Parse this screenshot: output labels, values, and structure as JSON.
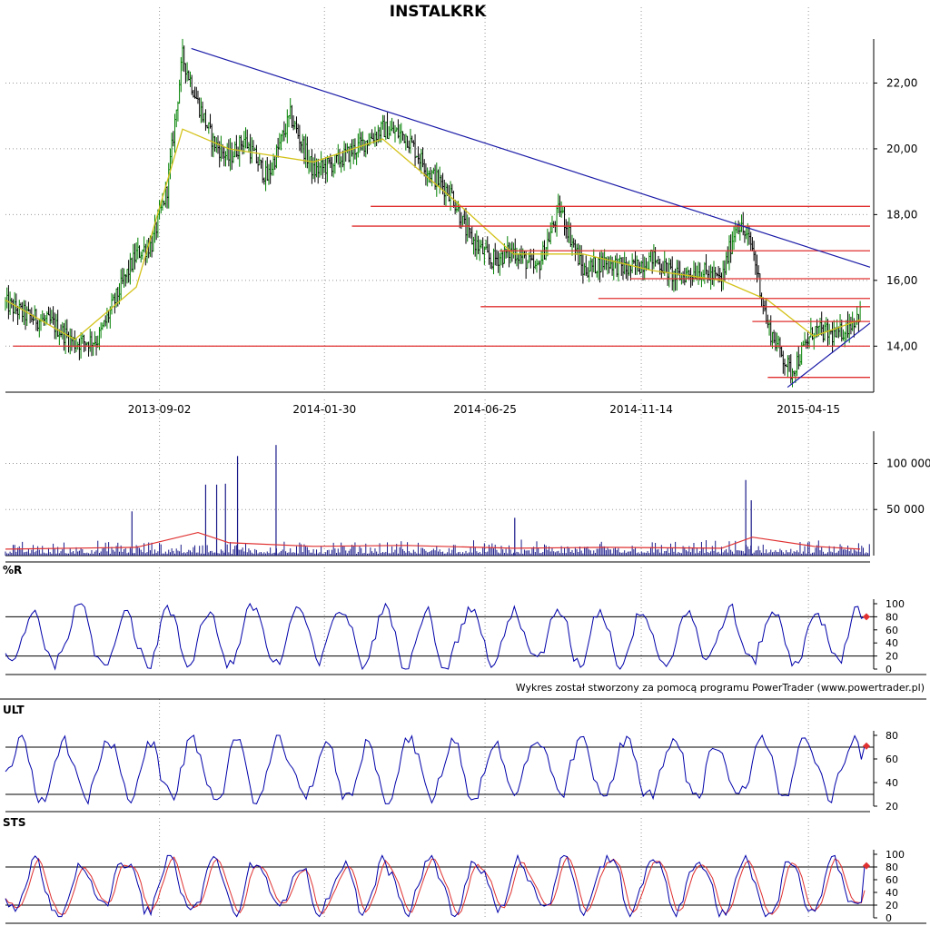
{
  "chart_data": {
    "type": "line",
    "title": "INSTALKRK",
    "credit": "Wykres został stworzony za pomocą programu PowerTrader (www.powertrader.pl)",
    "x_axis": {
      "start": "2013-04-15",
      "end": "2015-06-10",
      "ticks": [
        "2013-09-02",
        "2014-01-30",
        "2014-06-25",
        "2014-11-14",
        "2015-04-15"
      ]
    },
    "grid": true,
    "colors": {
      "price_up": "#008000",
      "price_down": "#000000",
      "moving_average": "#d4c21a",
      "trendline": "#1a1aa8",
      "support_resistance": "#e03030",
      "indicator": "#0000aa",
      "signal": "#e03030",
      "volume_bar": "#1a1a8a",
      "volume_avg": "#e03030"
    },
    "panels": [
      {
        "name": "price",
        "label": "",
        "ylim": [
          12.6,
          23.2
        ],
        "yticks": [
          "14,00",
          "16,00",
          "18,00",
          "20,00",
          "22,00"
        ],
        "series": [
          {
            "kind": "ohlc",
            "x": [
              "2013-04-15",
              "2013-05-06",
              "2013-05-27",
              "2013-06-17",
              "2013-07-08",
              "2013-07-29",
              "2013-08-12",
              "2013-08-26",
              "2013-09-09",
              "2013-09-23",
              "2013-10-07",
              "2013-10-21",
              "2013-11-04",
              "2013-11-18",
              "2013-12-09",
              "2013-12-30",
              "2014-01-20",
              "2014-02-10",
              "2014-03-03",
              "2014-03-24",
              "2014-04-14",
              "2014-05-05",
              "2014-05-26",
              "2014-06-09",
              "2014-06-30",
              "2014-07-21",
              "2014-08-11",
              "2014-09-01",
              "2014-09-22",
              "2014-10-13",
              "2014-11-03",
              "2014-11-24",
              "2014-12-15",
              "2015-01-05",
              "2015-01-26",
              "2015-02-09",
              "2015-02-23",
              "2015-03-09",
              "2015-03-30",
              "2015-04-20",
              "2015-05-11",
              "2015-06-01"
            ],
            "values": [
              15.3,
              14.9,
              14.7,
              14.1,
              14.2,
              15.8,
              16.8,
              17.1,
              18.8,
              22.8,
              21.4,
              20.2,
              19.7,
              20.3,
              19.1,
              21.0,
              19.3,
              19.6,
              20.1,
              20.6,
              20.4,
              19.3,
              18.6,
              17.4,
              16.6,
              16.9,
              16.3,
              18.2,
              16.3,
              16.6,
              16.3,
              16.7,
              16.1,
              16.3,
              16.0,
              17.8,
              17.0,
              14.6,
              13.2,
              14.5,
              14.3,
              15.0
            ]
          },
          {
            "kind": "moving_average",
            "x": [
              "2013-04-15",
              "2013-06-17",
              "2013-08-12",
              "2013-09-23",
              "2013-11-04",
              "2014-01-20",
              "2014-03-24",
              "2014-05-26",
              "2014-07-21",
              "2014-09-22",
              "2014-11-24",
              "2015-01-26",
              "2015-03-09",
              "2015-04-20",
              "2015-06-01"
            ],
            "values": [
              15.4,
              14.2,
              15.8,
              20.6,
              20.0,
              19.6,
              20.3,
              18.5,
              16.8,
              16.8,
              16.3,
              16.0,
              15.4,
              14.3,
              14.8
            ]
          }
        ],
        "trendlines": [
          {
            "from": [
              "2013-10-01",
              23.05
            ],
            "to": [
              "2015-06-10",
              16.4
            ]
          },
          {
            "from": [
              "2015-03-27",
              12.75
            ],
            "to": [
              "2015-06-10",
              14.7
            ]
          }
        ],
        "hlines": [
          {
            "y": 18.25,
            "from": "2014-03-13",
            "to": "2015-06-10"
          },
          {
            "y": 17.65,
            "from": "2014-02-24",
            "to": "2015-06-10"
          },
          {
            "y": 16.9,
            "from": "2014-07-08",
            "to": "2015-06-10"
          },
          {
            "y": 16.05,
            "from": "2014-11-04",
            "to": "2015-06-10"
          },
          {
            "y": 15.45,
            "from": "2014-10-06",
            "to": "2015-06-10"
          },
          {
            "y": 15.2,
            "from": "2014-06-21",
            "to": "2015-06-10"
          },
          {
            "y": 14.75,
            "from": "2015-02-23",
            "to": "2015-06-10"
          },
          {
            "y": 14.0,
            "from": "2013-04-22",
            "to": "2015-06-10"
          },
          {
            "y": 13.05,
            "from": "2015-03-09",
            "to": "2015-06-10"
          }
        ]
      },
      {
        "name": "volume",
        "label": "",
        "ylim": [
          0,
          130000
        ],
        "yticks": [
          "50 000",
          "100 000"
        ],
        "spikes": [
          {
            "x": "2013-08-08",
            "y": 48000
          },
          {
            "x": "2013-10-14",
            "y": 77000
          },
          {
            "x": "2013-10-24",
            "y": 77000
          },
          {
            "x": "2013-11-01",
            "y": 78000
          },
          {
            "x": "2013-11-12",
            "y": 108000
          },
          {
            "x": "2013-12-17",
            "y": 120000
          },
          {
            "x": "2014-07-22",
            "y": 41000
          },
          {
            "x": "2015-02-17",
            "y": 82000
          },
          {
            "x": "2015-02-22",
            "y": 60000
          }
        ],
        "avg_x": [
          "2013-04-15",
          "2013-08-12",
          "2013-10-07",
          "2013-11-04",
          "2014-01-20",
          "2014-04-14",
          "2014-07-21",
          "2014-10-13",
          "2015-01-26",
          "2015-02-23",
          "2015-04-20",
          "2015-06-01"
        ],
        "avg_values": [
          7000,
          9000,
          25000,
          14000,
          10000,
          11000,
          8000,
          9000,
          8000,
          20000,
          10000,
          7000
        ]
      },
      {
        "name": "williams_r",
        "label": "%R",
        "ylim": [
          0,
          100
        ],
        "yticks": [
          "0",
          "20",
          "40",
          "60",
          "80",
          "100"
        ],
        "levels": [
          20,
          80
        ],
        "last_value": 80
      },
      {
        "name": "ultimate_oscillator",
        "label": "ULT",
        "ylim": [
          20,
          80
        ],
        "yticks": [
          "20",
          "40",
          "60",
          "80"
        ],
        "levels": [
          30,
          70
        ],
        "last_value": 71
      },
      {
        "name": "stochastic",
        "label": "STS",
        "ylim": [
          0,
          100
        ],
        "yticks": [
          "0",
          "20",
          "40",
          "60",
          "80",
          "100"
        ],
        "levels": [
          20,
          80
        ],
        "last_value": 82
      }
    ]
  }
}
